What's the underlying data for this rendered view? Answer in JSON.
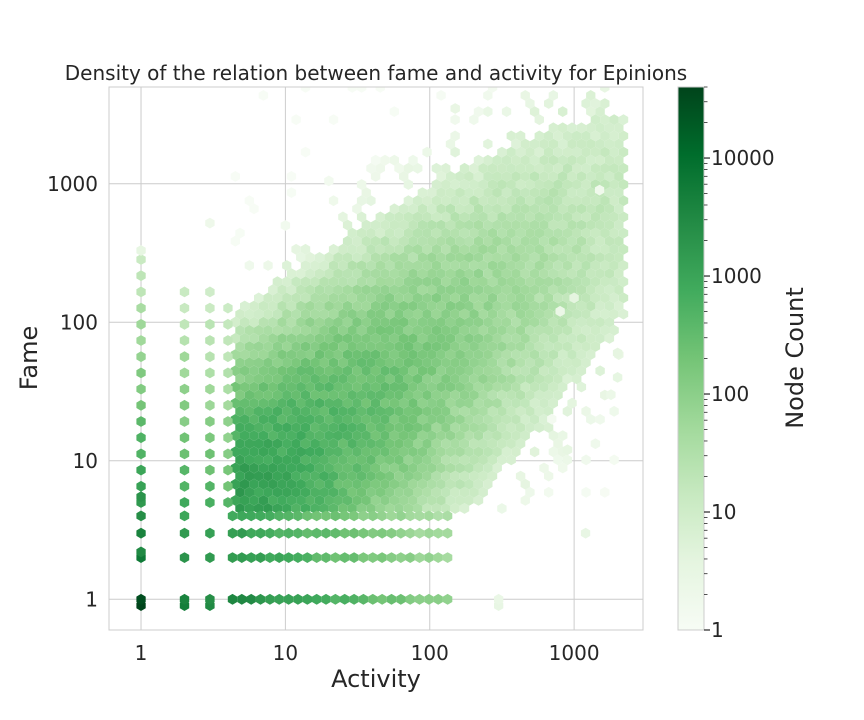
{
  "chart_data": {
    "type": "heatmap",
    "title": "Density of the relation between fame and activity for Epinions",
    "xlabel": "Activity",
    "ylabel": "Fame",
    "xscale": "log",
    "yscale": "log",
    "xlim": [
      0.6,
      3000
    ],
    "ylim": [
      0.6,
      5000
    ],
    "xticks": [
      {
        "value": 1,
        "label": "1"
      },
      {
        "value": 10,
        "label": "10"
      },
      {
        "value": 100,
        "label": "100"
      },
      {
        "value": 1000,
        "label": "1000"
      }
    ],
    "yticks": [
      {
        "value": 1,
        "label": "1"
      },
      {
        "value": 10,
        "label": "10"
      },
      {
        "value": 100,
        "label": "100"
      },
      {
        "value": 1000,
        "label": "1000"
      }
    ],
    "grid": true,
    "colorbar": {
      "label": "Node Count",
      "scale": "log",
      "range": [
        1,
        40000
      ],
      "ticks": [
        {
          "value": 1,
          "label": "1"
        },
        {
          "value": 10,
          "label": "10"
        },
        {
          "value": 100,
          "label": "100"
        },
        {
          "value": 1000,
          "label": "1000"
        },
        {
          "value": 10000,
          "label": "10000"
        }
      ],
      "colormap": "Greens",
      "colors": [
        "#f7fcf5",
        "#e5f5e0",
        "#c7e9c0",
        "#a1d99b",
        "#74c476",
        "#41ab5d",
        "#238b45",
        "#006d2c",
        "#00441b"
      ]
    }
  }
}
